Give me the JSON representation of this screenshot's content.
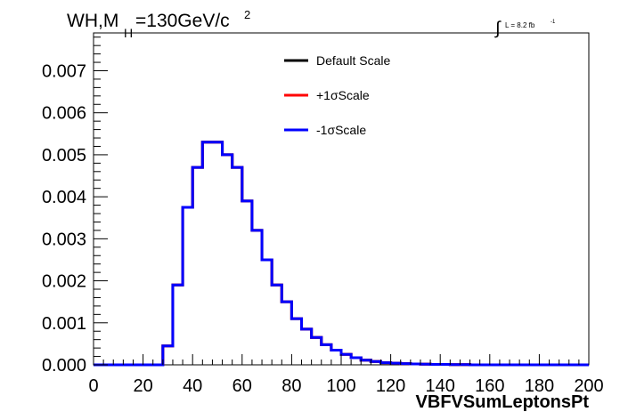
{
  "chart_data": {
    "type": "histogram",
    "title_parts": {
      "main": "WH,M",
      "sub": "H",
      "mid": "=130GeV/c",
      "sup": "2"
    },
    "lumi_parts": {
      "integral": "∫",
      "text": "L = 8.2 fb",
      "sup": "-1"
    },
    "xlabel": "VBFVSumLeptonsPt",
    "ylabel": "",
    "xlim": [
      0,
      200
    ],
    "ylim": [
      0,
      0.0079
    ],
    "xticks": [
      "0",
      "20",
      "40",
      "60",
      "80",
      "100",
      "120",
      "140",
      "160",
      "180",
      "200"
    ],
    "yticks": [
      "0.000",
      "0.001",
      "0.002",
      "0.003",
      "0.004",
      "0.005",
      "0.006",
      "0.007"
    ],
    "grid": false,
    "legend_position": "top-right",
    "bin_width": 4,
    "bin_edges_start": 0,
    "series": [
      {
        "name": "Default Scale",
        "color": "#000000",
        "values": [
          0,
          0,
          0,
          0,
          0,
          0,
          0,
          0.00045,
          0.0019,
          0.00375,
          0.0047,
          0.0053,
          0.0053,
          0.005,
          0.0047,
          0.0039,
          0.0032,
          0.0025,
          0.0019,
          0.0015,
          0.0011,
          0.00085,
          0.00065,
          0.00048,
          0.00035,
          0.00025,
          0.00017,
          0.00011,
          8e-05,
          5e-05,
          4e-05,
          3e-05,
          2e-05,
          1.5e-05,
          1e-05,
          1e-05,
          5e-06,
          5e-06,
          0,
          0,
          0,
          0,
          0,
          0,
          0,
          0,
          0,
          0,
          0,
          0
        ]
      },
      {
        "name": "+1σScale",
        "color": "#ff0000",
        "values": [
          0,
          0,
          0,
          0,
          0,
          0,
          0,
          0.00045,
          0.0019,
          0.00375,
          0.0047,
          0.0053,
          0.0053,
          0.005,
          0.0047,
          0.0039,
          0.0032,
          0.0025,
          0.0019,
          0.0015,
          0.0011,
          0.00085,
          0.00065,
          0.00048,
          0.00035,
          0.00025,
          0.00017,
          0.00011,
          8e-05,
          5e-05,
          4e-05,
          3e-05,
          2e-05,
          1.5e-05,
          1e-05,
          1e-05,
          5e-06,
          5e-06,
          0,
          0,
          0,
          0,
          0,
          0,
          0,
          0,
          0,
          0,
          0,
          0
        ]
      },
      {
        "name": "-1σScale",
        "color": "#0000ff",
        "values": [
          0,
          0,
          0,
          0,
          0,
          0,
          0,
          0.00045,
          0.0019,
          0.00375,
          0.0047,
          0.0053,
          0.0053,
          0.005,
          0.0047,
          0.0039,
          0.0032,
          0.0025,
          0.0019,
          0.0015,
          0.0011,
          0.00085,
          0.00065,
          0.00048,
          0.00035,
          0.00025,
          0.00017,
          0.00011,
          8e-05,
          5e-05,
          4e-05,
          3e-05,
          2e-05,
          1.5e-05,
          1e-05,
          1e-05,
          5e-06,
          5e-06,
          0,
          0,
          0,
          0,
          0,
          0,
          0,
          0,
          0,
          0,
          0,
          0
        ]
      }
    ]
  }
}
